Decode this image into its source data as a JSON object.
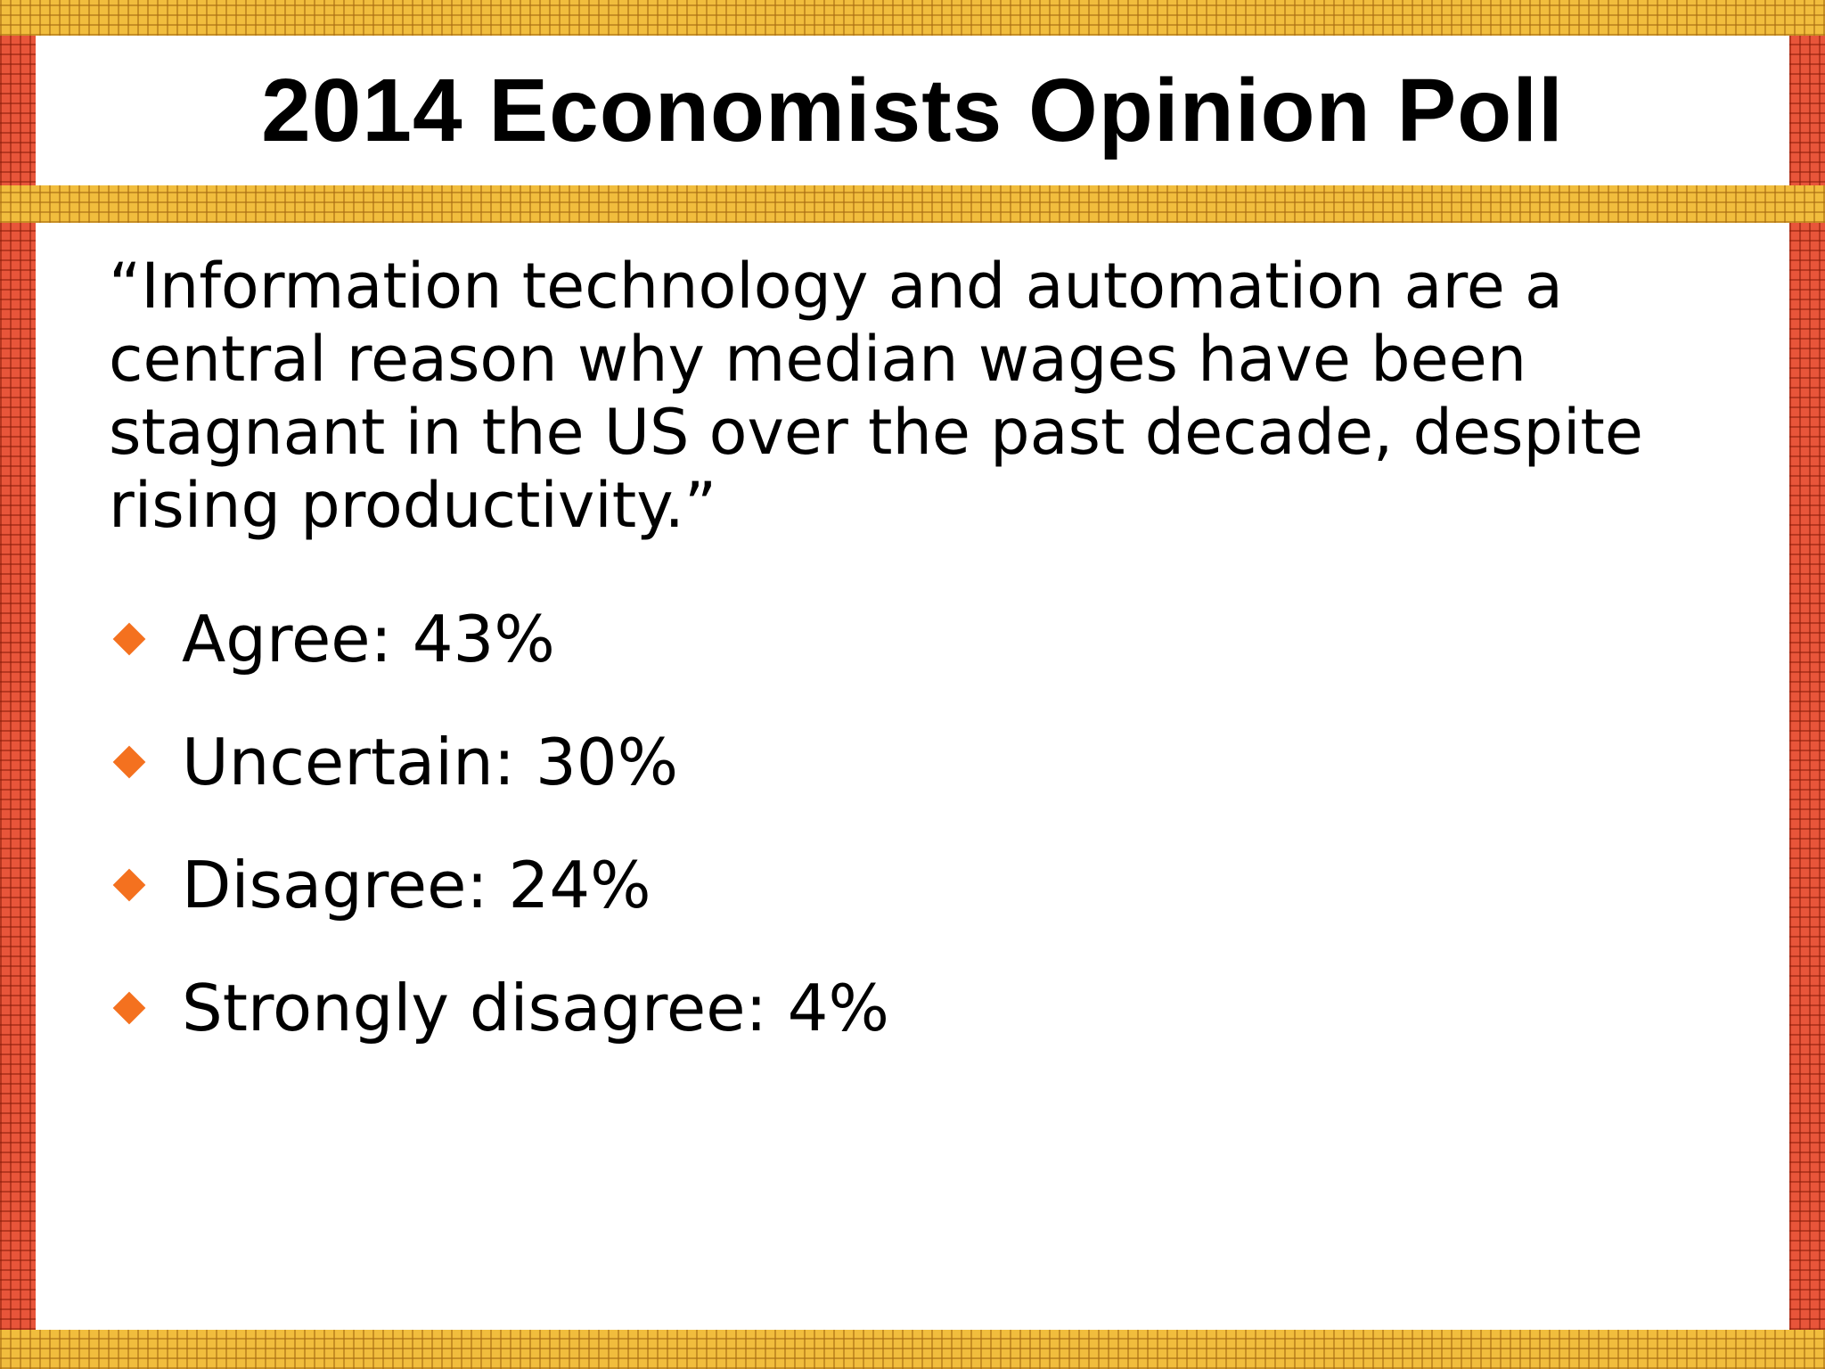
{
  "slide": {
    "title": "2014 Economists Opinion Poll",
    "quote": "“Information technology and automation are a central reason why median wages have been stagnant in the US over the past decade, despite rising productivity.”",
    "bullets": [
      {
        "label": "Agree: 43%"
      },
      {
        "label": "Uncertain: 30%"
      },
      {
        "label": "Disagree: 24%"
      },
      {
        "label": "Strongly disagree: 4%"
      }
    ],
    "colors": {
      "border_red": "#e8553a",
      "border_yellow": "#f1bd3d",
      "bullet_orange": "#f4711f",
      "background": "#ffffff",
      "text": "#000000"
    },
    "icons": {
      "bullet": "diamond-bullet-icon"
    }
  }
}
